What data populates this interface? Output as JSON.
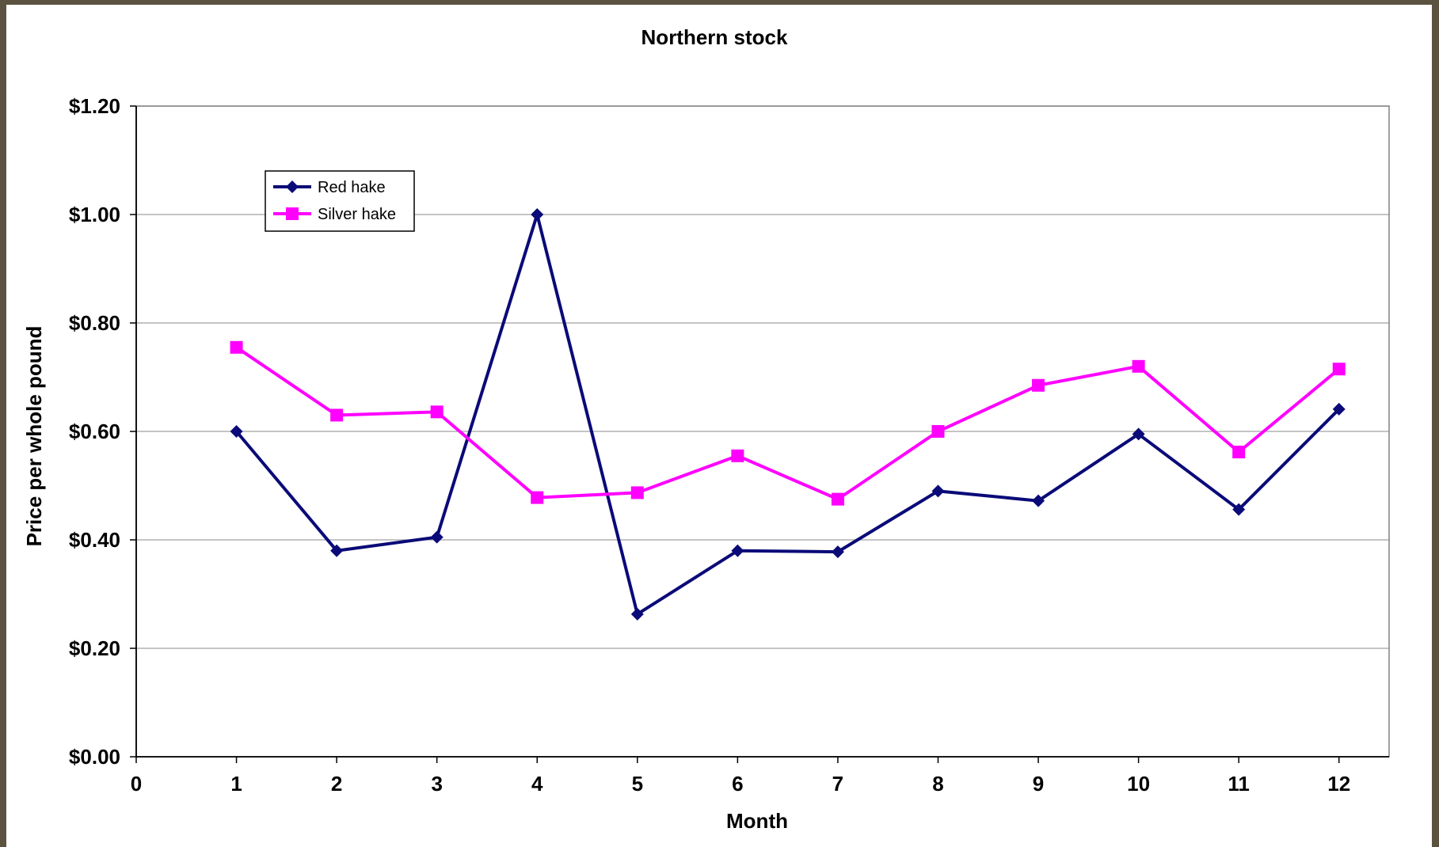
{
  "chart_data": {
    "type": "line",
    "title": "Northern stock",
    "xlabel": "Month",
    "ylabel": "Price per whole pound",
    "x_ticks": [
      "0",
      "1",
      "2",
      "3",
      "4",
      "5",
      "6",
      "7",
      "8",
      "9",
      "10",
      "11",
      "12"
    ],
    "y_ticks": [
      "$0.00",
      "$0.20",
      "$0.40",
      "$0.60",
      "$0.80",
      "$1.00",
      "$1.20"
    ],
    "xlim": [
      0,
      12.5
    ],
    "ylim": [
      0,
      1.2
    ],
    "grid": "horizontal",
    "legend_position": "top-left",
    "x": [
      1,
      2,
      3,
      4,
      5,
      6,
      7,
      8,
      9,
      10,
      11,
      12
    ],
    "series": [
      {
        "name": "Red hake",
        "color": "#0a0a78",
        "marker": "diamond",
        "values": [
          0.6,
          0.38,
          0.405,
          1.0,
          0.263,
          0.38,
          0.378,
          0.49,
          0.472,
          0.595,
          0.456,
          0.641
        ]
      },
      {
        "name": "Silver hake",
        "color": "#ff00ff",
        "marker": "square",
        "values": [
          0.755,
          0.63,
          0.636,
          0.478,
          0.487,
          0.555,
          0.475,
          0.6,
          0.685,
          0.72,
          0.562,
          0.715
        ]
      }
    ]
  }
}
